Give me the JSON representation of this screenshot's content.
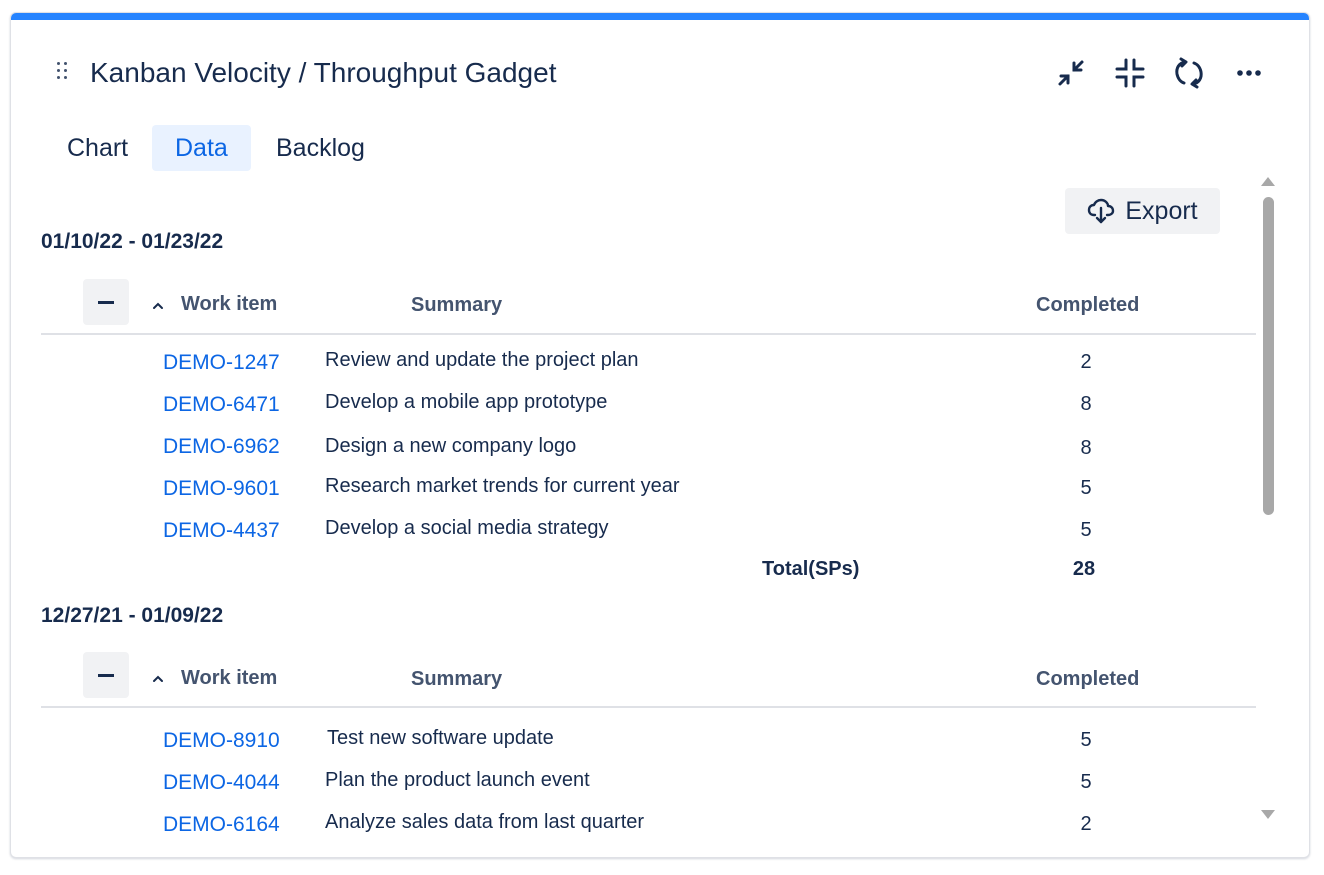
{
  "gadget": {
    "title": "Kanban Velocity / Throughput Gadget"
  },
  "tabs": [
    {
      "label": "Chart",
      "active": false
    },
    {
      "label": "Data",
      "active": true
    },
    {
      "label": "Backlog",
      "active": false
    }
  ],
  "toolbar": {
    "icons": [
      "minimize-icon",
      "collapse-icon",
      "refresh-icon",
      "more-icon"
    ],
    "export_label": "Export"
  },
  "table_headers": {
    "work_item": "Work item",
    "summary": "Summary",
    "completed": "Completed"
  },
  "total_label": "Total(SPs)",
  "groups": [
    {
      "range": "01/10/22 - 01/23/22",
      "rows": [
        {
          "key": "DEMO-1247",
          "summary": "Review and update the project plan",
          "completed": "2"
        },
        {
          "key": "DEMO-6471",
          "summary": "Develop a mobile app prototype",
          "completed": "8"
        },
        {
          "key": "DEMO-6962",
          "summary": "Design a new company logo",
          "completed": "8"
        },
        {
          "key": "DEMO-9601",
          "summary": "Research market trends for current year",
          "completed": "5"
        },
        {
          "key": "DEMO-4437",
          "summary": "Develop a social media strategy",
          "completed": "5"
        }
      ],
      "total": "28"
    },
    {
      "range": "12/27/21 - 01/09/22",
      "rows": [
        {
          "key": "DEMO-8910",
          "summary": "Test new software update",
          "completed": "5"
        },
        {
          "key": "DEMO-4044",
          "summary": "Plan the product launch event",
          "completed": "5"
        },
        {
          "key": "DEMO-6164",
          "summary": "Analyze sales data from last quarter",
          "completed": "2"
        }
      ]
    }
  ],
  "colors": {
    "accent_bar": "#2684ff",
    "link": "#0c66e4",
    "active_tab_bg": "#e9f2ff",
    "text": "#172b4d"
  }
}
